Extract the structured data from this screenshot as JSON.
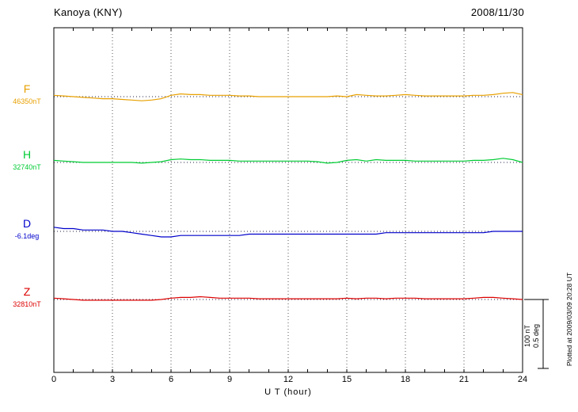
{
  "header": {
    "title": "Kanoya (KNY)",
    "date": "2008/11/30"
  },
  "axis": {
    "xlabel": "U T (hour)"
  },
  "scale_bar": {
    "line1": "100 nT",
    "line2": "0.5 deg"
  },
  "footer": {
    "plotted_at": "Plotted at 2009/03/09 20:28 UT"
  },
  "chart_data": {
    "type": "line",
    "title": "Kanoya (KNY) magnetogram 2008/11/30",
    "xlabel": "U T (hour)",
    "x_range": [
      0,
      24
    ],
    "x_step_hours": 0.5,
    "x_tick_labels": [
      "0",
      "3",
      "6",
      "9",
      "12",
      "15",
      "18",
      "21",
      "24"
    ],
    "grid": "dotted vertical lines every 3 hours; dotted horizontal baseline per trace",
    "legend_position": "left of each trace",
    "scale": {
      "bar_nT": 100,
      "bar_deg": 0.5
    },
    "series": [
      {
        "name": "F",
        "baseline_label": "46350nT",
        "baseline_value": 46350,
        "unit": "nT",
        "color": "#e8a000",
        "offsets": [
          2,
          1,
          0,
          -1,
          -2,
          -3,
          -3,
          -4,
          -5,
          -6,
          -5,
          -3,
          2,
          4,
          3,
          3,
          2,
          2,
          2,
          1,
          1,
          0,
          0,
          0,
          0,
          0,
          0,
          0,
          0,
          1,
          0,
          3,
          2,
          1,
          1,
          2,
          3,
          2,
          1,
          1,
          1,
          1,
          1,
          2,
          2,
          3,
          5,
          6,
          3
        ]
      },
      {
        "name": "H",
        "baseline_label": "32740nT",
        "baseline_value": 32740,
        "unit": "nT",
        "color": "#00cc33",
        "offsets": [
          3,
          2,
          1,
          0,
          0,
          0,
          0,
          0,
          0,
          -1,
          0,
          1,
          4,
          5,
          4,
          4,
          3,
          3,
          3,
          2,
          2,
          2,
          2,
          2,
          2,
          2,
          2,
          1,
          -1,
          0,
          3,
          4,
          2,
          4,
          3,
          3,
          3,
          2,
          2,
          2,
          2,
          2,
          2,
          3,
          3,
          4,
          6,
          4,
          0
        ]
      },
      {
        "name": "D",
        "baseline_label": "-6.1deg",
        "baseline_value": -6.1,
        "unit": "deg",
        "color": "#0000cc",
        "offsets": [
          0.03,
          0.02,
          0.02,
          0.01,
          0.01,
          0.01,
          0,
          0,
          -0.01,
          -0.02,
          -0.03,
          -0.04,
          -0.04,
          -0.03,
          -0.03,
          -0.03,
          -0.03,
          -0.03,
          -0.03,
          -0.03,
          -0.02,
          -0.02,
          -0.02,
          -0.02,
          -0.02,
          -0.02,
          -0.02,
          -0.02,
          -0.02,
          -0.02,
          -0.02,
          -0.02,
          -0.02,
          -0.02,
          -0.01,
          -0.01,
          -0.01,
          -0.01,
          -0.01,
          -0.01,
          -0.01,
          -0.01,
          -0.01,
          -0.01,
          -0.01,
          0,
          0,
          0,
          0
        ]
      },
      {
        "name": "Z",
        "baseline_label": "32810nT",
        "baseline_value": 32810,
        "unit": "nT",
        "color": "#dd0000",
        "offsets": [
          2,
          1,
          0,
          -1,
          -1,
          -1,
          -1,
          -1,
          -1,
          -1,
          -1,
          0,
          2,
          3,
          3,
          4,
          3,
          2,
          2,
          2,
          2,
          1,
          1,
          1,
          1,
          1,
          1,
          1,
          1,
          1,
          2,
          1,
          2,
          2,
          1,
          2,
          2,
          2,
          1,
          1,
          1,
          1,
          1,
          2,
          3,
          3,
          2,
          1,
          0
        ]
      }
    ]
  }
}
